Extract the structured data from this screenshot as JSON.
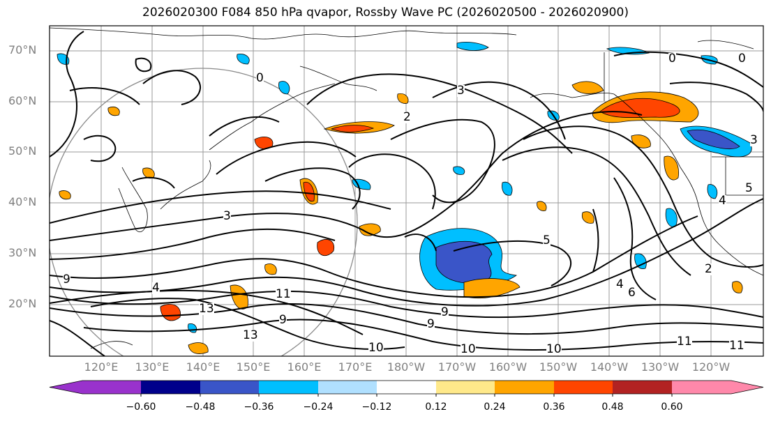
{
  "title": "2026020300 F084 850 hPa qvapor, Rossby Wave PC (2026020500 - 2026020900)",
  "lat_labels": [
    "70°N",
    "60°N",
    "50°N",
    "40°N",
    "30°N",
    "20°N"
  ],
  "lon_labels": [
    "120°E",
    "130°E",
    "140°E",
    "150°E",
    "160°E",
    "170°E",
    "180°W",
    "170°W",
    "160°W",
    "150°W",
    "140°W",
    "130°W",
    "120°W"
  ],
  "colorbar": {
    "ticks": [
      "−0.60",
      "−0.48",
      "−0.36",
      "−0.24",
      "−0.12",
      "0.12",
      "0.24",
      "0.36",
      "0.48",
      "0.60"
    ],
    "colors": [
      "#9932cc",
      "#00008b",
      "#3a55c8",
      "#00bfff",
      "#b0e0ff",
      "#ffffff",
      "#ffe98a",
      "#ffa500",
      "#ff4500",
      "#b22222",
      "#ff88aa"
    ]
  },
  "contour_labels": [
    "0",
    "0",
    "0",
    "2",
    "2",
    "3",
    "3",
    "3",
    "4",
    "4",
    "4",
    "5",
    "5",
    "6",
    "9",
    "9",
    "9",
    "9",
    "10",
    "10",
    "10",
    "11",
    "11",
    "11",
    "13",
    "13"
  ]
}
